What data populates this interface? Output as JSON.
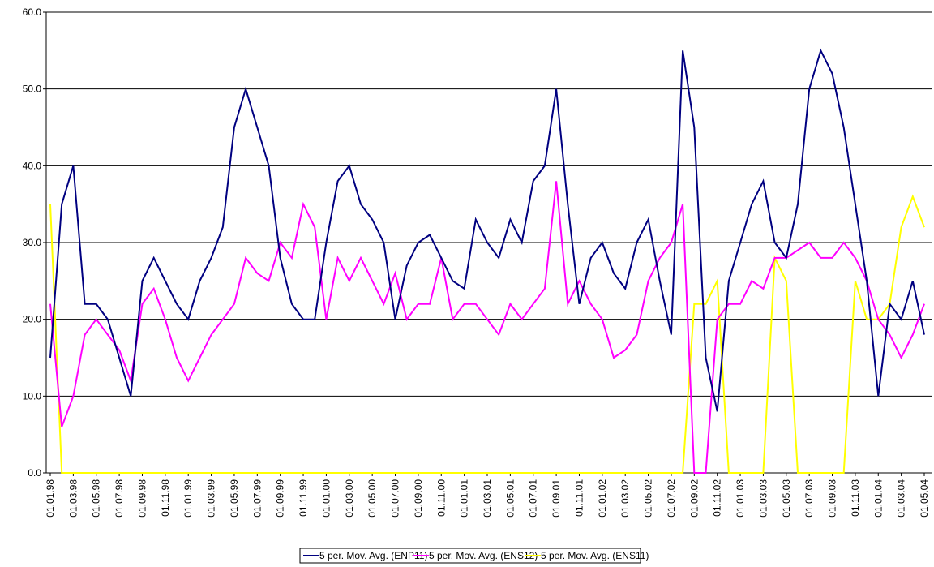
{
  "chart_data": {
    "type": "line",
    "categories": [
      "01.01.98",
      null,
      "01.03.98",
      null,
      "01.05.98",
      null,
      "01.07.98",
      null,
      "01.09.98",
      null,
      "01.11.98",
      null,
      "01.01.99",
      null,
      "01.03.99",
      null,
      "01.05.99",
      null,
      "01.07.99",
      null,
      "01.09.99",
      null,
      "01.11.99",
      null,
      "01.01.00",
      null,
      "01.03.00",
      null,
      "01.05.00",
      null,
      "01.07.00",
      null,
      "01.09.00",
      null,
      "01.11.00",
      null,
      "01.01.01",
      null,
      "01.03.01",
      null,
      "01.05.01",
      null,
      "01.07.01",
      null,
      "01.09.01",
      null,
      "01.11.01",
      null,
      "01.01.02",
      null,
      "01.03.02",
      null,
      "01.05.02",
      null,
      "01.07.02",
      null,
      "01.09.02",
      null,
      "01.11.02",
      null,
      "01.01.03",
      null,
      "01.03.03",
      null,
      "01.05.03",
      null,
      "01.07.03",
      null,
      "01.09.03",
      null,
      "01.11.03",
      null,
      "01.01.04",
      null,
      "01.03.04",
      null,
      "01.05.04"
    ],
    "series": [
      {
        "name": "5 per. Mov. Avg. (ENP11)",
        "color": "#000080",
        "values": [
          15,
          35,
          40,
          22,
          22,
          20,
          15,
          10,
          25,
          28,
          25,
          22,
          20,
          25,
          28,
          32,
          45,
          50,
          45,
          40,
          28,
          22,
          20,
          20,
          30,
          38,
          40,
          35,
          33,
          30,
          20,
          27,
          30,
          31,
          28,
          25,
          24,
          33,
          30,
          28,
          33,
          30,
          38,
          40,
          50,
          35,
          22,
          28,
          30,
          26,
          24,
          30,
          33,
          25,
          18,
          55,
          45,
          15,
          8,
          25,
          30,
          35,
          38,
          30,
          28,
          35,
          50,
          55,
          52,
          45,
          35,
          25,
          10,
          22,
          20,
          25,
          18
        ]
      },
      {
        "name": "5 per. Mov. Avg. (ENS12)",
        "color": "#ff00ff",
        "values": [
          22,
          6,
          10,
          18,
          20,
          18,
          16,
          12,
          22,
          24,
          20,
          15,
          12,
          15,
          18,
          20,
          22,
          28,
          26,
          25,
          30,
          28,
          35,
          32,
          20,
          28,
          25,
          28,
          25,
          22,
          26,
          20,
          22,
          22,
          28,
          20,
          22,
          22,
          20,
          18,
          22,
          20,
          22,
          24,
          38,
          22,
          25,
          22,
          20,
          15,
          16,
          18,
          25,
          28,
          30,
          35,
          0,
          0,
          20,
          22,
          22,
          25,
          24,
          28,
          28,
          29,
          30,
          28,
          28,
          30,
          28,
          25,
          20,
          18,
          15,
          18,
          22
        ]
      },
      {
        "name": "5 per. Mov. Avg. (ENS11)",
        "color": "#ffff00",
        "values": [
          35,
          0,
          0,
          0,
          0,
          0,
          0,
          0,
          0,
          0,
          0,
          0,
          0,
          0,
          0,
          0,
          0,
          0,
          0,
          0,
          0,
          0,
          0,
          0,
          0,
          0,
          0,
          0,
          0,
          0,
          0,
          0,
          0,
          0,
          0,
          0,
          0,
          0,
          0,
          0,
          0,
          0,
          0,
          0,
          0,
          0,
          0,
          0,
          0,
          0,
          0,
          0,
          0,
          0,
          0,
          0,
          22,
          22,
          25,
          0,
          0,
          0,
          0,
          28,
          25,
          0,
          0,
          0,
          0,
          0,
          25,
          20,
          20,
          22,
          32,
          36,
          32
        ]
      }
    ],
    "ylim": [
      0,
      60
    ],
    "yticks": [
      {
        "value": 0,
        "label": "0.0"
      },
      {
        "value": 10,
        "label": "10.0"
      },
      {
        "value": 20,
        "label": "20.0"
      },
      {
        "value": 30,
        "label": "30.0"
      },
      {
        "value": 40,
        "label": "40.0"
      },
      {
        "value": 50,
        "label": "50.0"
      },
      {
        "value": 60,
        "label": "60.0"
      }
    ],
    "grid": true,
    "legend": "bottom"
  }
}
